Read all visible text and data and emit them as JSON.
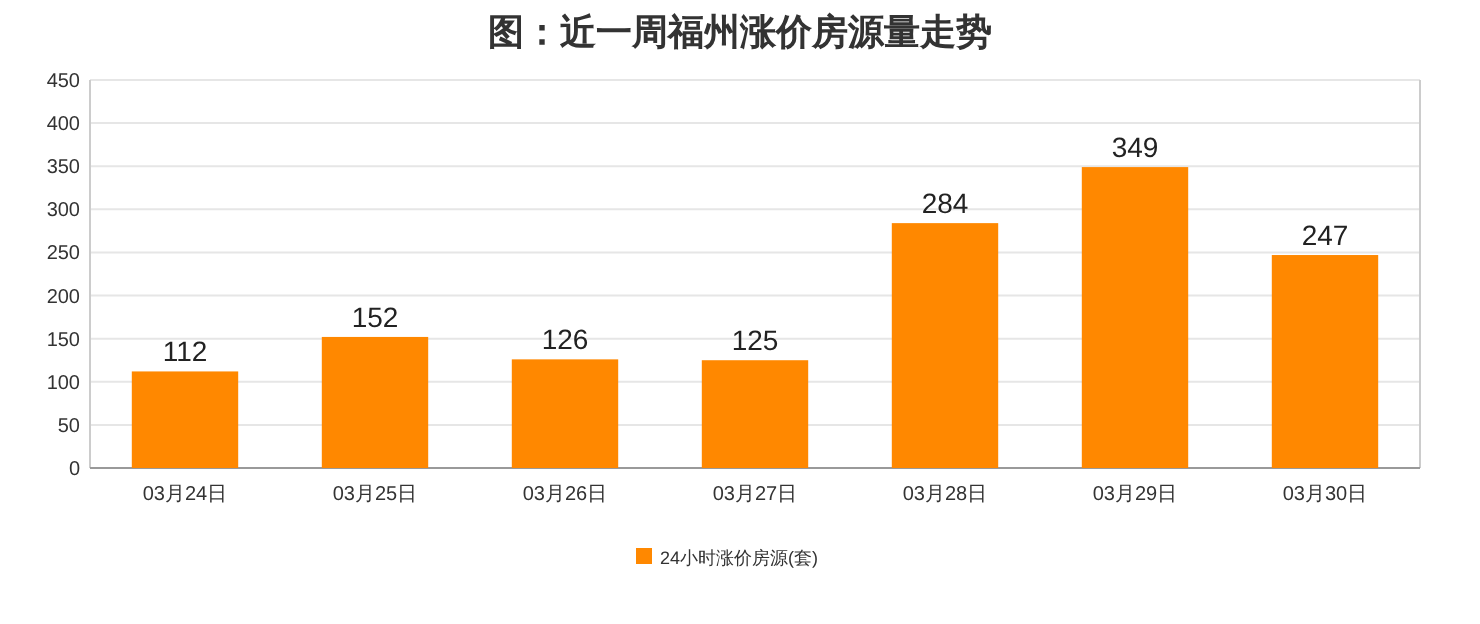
{
  "chart_data": {
    "type": "bar",
    "title": "图：近一周福州涨价房源量走势",
    "categories": [
      "03月24日",
      "03月25日",
      "03月26日",
      "03月27日",
      "03月28日",
      "03月29日",
      "03月30日"
    ],
    "series": [
      {
        "name": "24小时涨价房源(套)",
        "color": "#ff8800",
        "values": [
          112,
          152,
          126,
          125,
          284,
          349,
          247
        ]
      }
    ],
    "ylim": [
      0,
      450
    ],
    "yticks": [
      0,
      50,
      100,
      150,
      200,
      250,
      300,
      350,
      400,
      450
    ],
    "grid": "y",
    "legend": "bottom",
    "data_labels": true
  }
}
